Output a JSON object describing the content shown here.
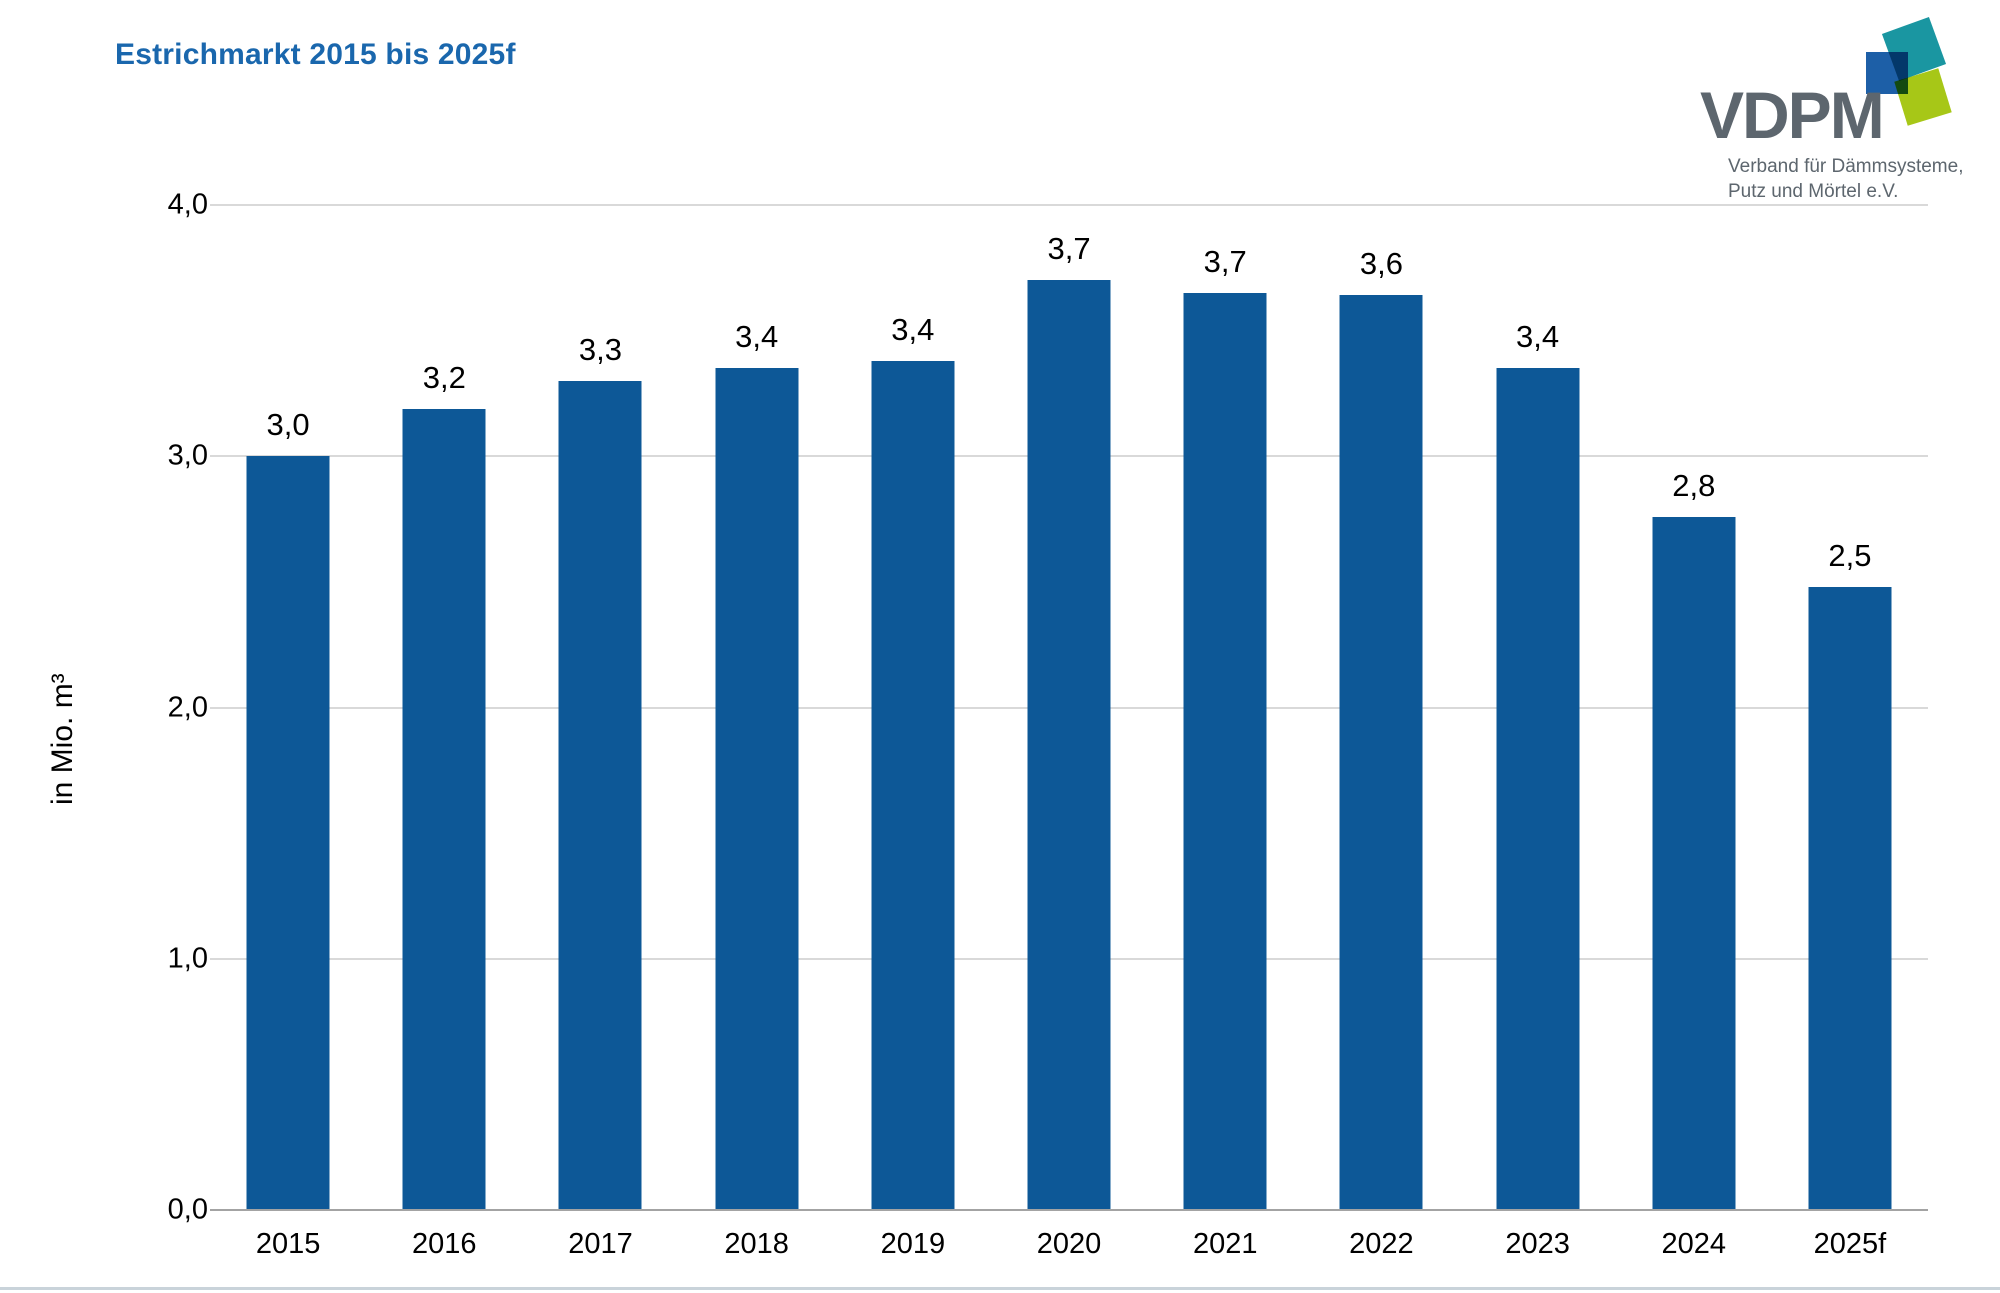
{
  "header": {
    "title": "Estrichmarkt 2015 bis 2025f",
    "title_color": "#1a67ad"
  },
  "logo": {
    "wordmark": "VDPM",
    "subtitle_lines": [
      "Verband für Dämmsysteme,",
      "Putz und Mörtel e.V."
    ],
    "text_color": "#5d666e",
    "square_colors": {
      "teal": "#1a96a1",
      "blue": "#1d5fa7",
      "green": "#a7c717"
    }
  },
  "chart_data": {
    "type": "bar",
    "title": "Estrichmarkt 2015 bis 2025f",
    "xlabel": "",
    "ylabel": "in Mio. m³",
    "categories": [
      "2015",
      "2016",
      "2017",
      "2018",
      "2019",
      "2020",
      "2021",
      "2022",
      "2023",
      "2024",
      "2025f"
    ],
    "values": [
      3.0,
      3.19,
      3.3,
      3.35,
      3.38,
      3.7,
      3.65,
      3.64,
      3.35,
      2.76,
      2.48
    ],
    "value_labels": [
      "3,0",
      "3,2",
      "3,3",
      "3,4",
      "3,4",
      "3,7",
      "3,7",
      "3,6",
      "3,4",
      "2,8",
      "2,5"
    ],
    "ylim": [
      0,
      4
    ],
    "yticks": [
      {
        "value": 0,
        "label": "0,0"
      },
      {
        "value": 1,
        "label": "1,0"
      },
      {
        "value": 2,
        "label": "2,0"
      },
      {
        "value": 3,
        "label": "3,0"
      },
      {
        "value": 4,
        "label": "4,0"
      }
    ],
    "bar_color": "#0d5897",
    "grid": true,
    "legend_position": "none"
  }
}
